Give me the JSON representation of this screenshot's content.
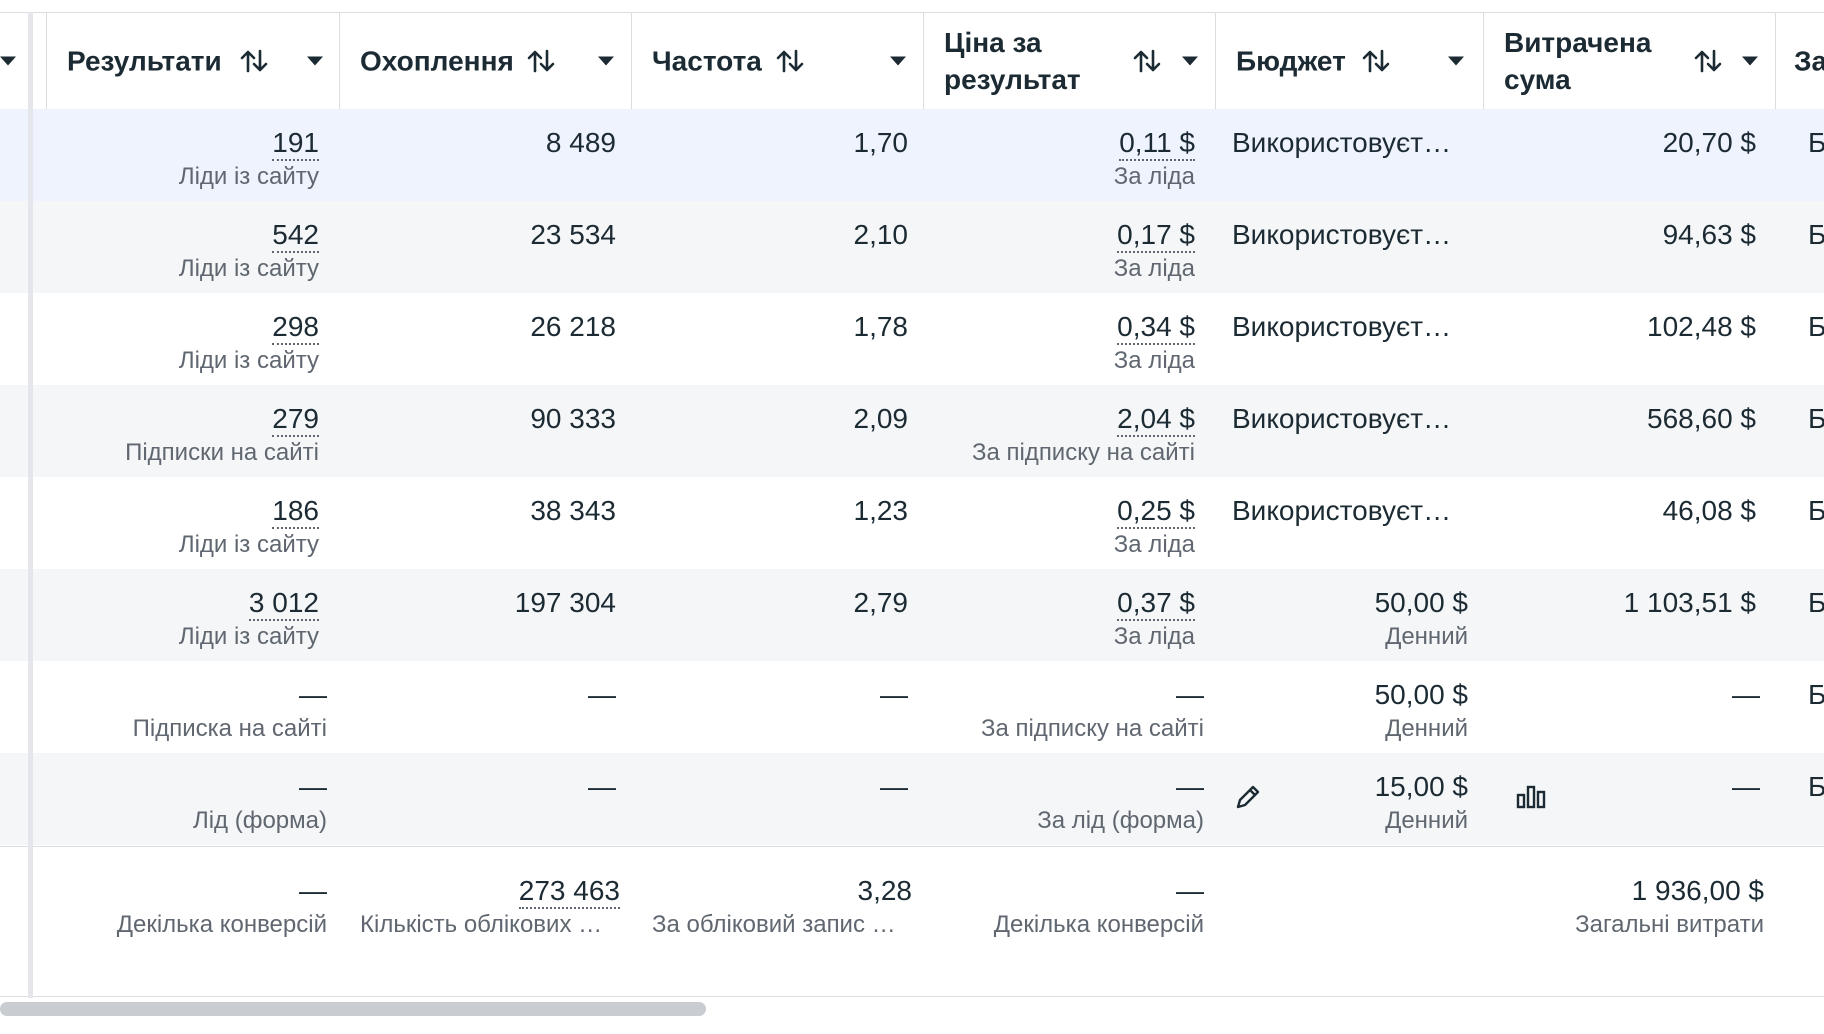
{
  "columns": [
    {
      "key": "results",
      "label": "Результати",
      "sort_icon": "sort-arrows-icon",
      "menu_icon": "caret-down-icon"
    },
    {
      "key": "reach",
      "label": "Охоплення",
      "sort_icon": "sort-arrows-icon",
      "menu_icon": "caret-down-icon"
    },
    {
      "key": "frequency",
      "label": "Частота",
      "sort_icon": "sort-arrows-icon",
      "menu_icon": "caret-down-icon"
    },
    {
      "key": "cost_per_result",
      "label_line1": "Ціна за",
      "label_line2": "результат",
      "sort_icon": "sort-arrows-icon",
      "menu_icon": "caret-down-icon"
    },
    {
      "key": "budget",
      "label": "Бюджет",
      "sort_icon": "sort-arrows-icon",
      "menu_icon": "caret-down-icon"
    },
    {
      "key": "amount_spent",
      "label_line1": "Витрачена",
      "label_line2": "сума",
      "sort_icon": "sort-arrows-icon",
      "menu_icon": "caret-down-icon"
    },
    {
      "key": "next_partial",
      "label": "За"
    }
  ],
  "rows": [
    {
      "results": "191",
      "results_sub": "Ліди із сайту",
      "reach": "8 489",
      "frequency": "1,70",
      "cpr": "0,11 $",
      "cpr_sub": "За ліда",
      "budget": "Використовуєт…",
      "budget_sub": "",
      "spent": "20,70 $",
      "next": "Б",
      "highlight": true
    },
    {
      "results": "542",
      "results_sub": "Ліди із сайту",
      "reach": "23 534",
      "frequency": "2,10",
      "cpr": "0,17 $",
      "cpr_sub": "За ліда",
      "budget": "Використовуєт…",
      "budget_sub": "",
      "spent": "94,63 $",
      "next": "Б"
    },
    {
      "results": "298",
      "results_sub": "Ліди із сайту",
      "reach": "26 218",
      "frequency": "1,78",
      "cpr": "0,34 $",
      "cpr_sub": "За ліда",
      "budget": "Використовуєт…",
      "budget_sub": "",
      "spent": "102,48 $",
      "next": "Б"
    },
    {
      "results": "279",
      "results_sub": "Підписки на сайті",
      "reach": "90 333",
      "frequency": "2,09",
      "cpr": "2,04 $",
      "cpr_sub": "За підписку на сайті",
      "budget": "Використовуєт…",
      "budget_sub": "",
      "spent": "568,60 $",
      "next": "Б"
    },
    {
      "results": "186",
      "results_sub": "Ліди із сайту",
      "reach": "38 343",
      "frequency": "1,23",
      "cpr": "0,25 $",
      "cpr_sub": "За ліда",
      "budget": "Використовуєт…",
      "budget_sub": "",
      "spent": "46,08 $",
      "next": "Б"
    },
    {
      "results": "3 012",
      "results_sub": "Ліди із сайту",
      "reach": "197 304",
      "frequency": "2,79",
      "cpr": "0,37 $",
      "cpr_sub": "За ліда",
      "budget": "50,00 $",
      "budget_sub": "Денний",
      "spent": "1 103,51 $",
      "next": "Б"
    },
    {
      "results": "—",
      "results_sub": "Підписка на сайті",
      "reach": "—",
      "frequency": "—",
      "cpr": "—",
      "cpr_sub": "За підписку на сайті",
      "budget": "50,00 $",
      "budget_sub": "Денний",
      "spent": "—",
      "next": "Б"
    },
    {
      "results": "—",
      "results_sub": "Лід (форма)",
      "reach": "—",
      "frequency": "—",
      "cpr": "—",
      "cpr_sub": "За лід (форма)",
      "budget": "15,00 $",
      "budget_sub": "Денний",
      "spent": "—",
      "next": "Б",
      "hover_icons": [
        "pencil-icon",
        "bar-chart-icon"
      ]
    }
  ],
  "totals": {
    "results": "—",
    "results_sub": "Декілька конверсій",
    "reach": "273 463",
    "reach_sub": "Кількість облікових …",
    "frequency": "3,28",
    "frequency_sub": "За обліковий запис …",
    "cpr": "—",
    "cpr_sub": "Декілька конверсій",
    "spent": "1 936,00 $",
    "spent_sub": "Загальні витрати"
  },
  "colors": {
    "highlight_row": "#eef3fd",
    "alt_row": "#f5f6f7",
    "text": "#1c2b33",
    "subtext": "#606770"
  }
}
